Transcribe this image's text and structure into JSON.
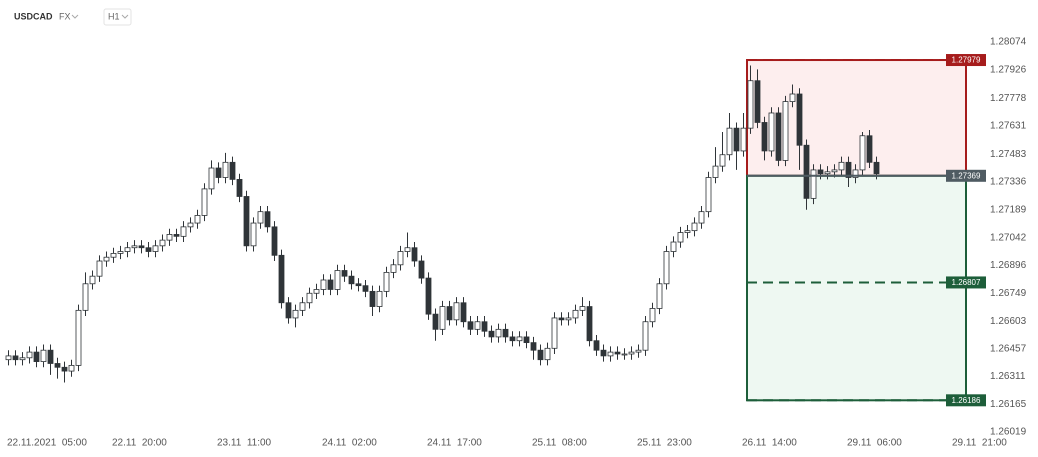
{
  "chart_data": {
    "type": "candlestick",
    "title": "USDCAD",
    "market": "FX",
    "timeframe": "H1",
    "open": [
      1.264,
      1.2642,
      1.264,
      1.2641,
      1.2644,
      1.2639,
      1.2645,
      1.2638,
      1.2636,
      1.2634,
      1.2637,
      1.2666,
      1.268,
      1.2684,
      1.2692,
      1.2694,
      1.2696,
      1.2697,
      1.2699,
      1.27,
      1.2699,
      1.2697,
      1.27,
      1.2703,
      1.2706,
      1.2705,
      1.271,
      1.2712,
      1.2716,
      1.273,
      1.2741,
      1.2736,
      1.2744,
      1.2735,
      1.2726,
      1.27,
      1.2712,
      1.2718,
      1.271,
      1.2695,
      1.267,
      1.2662,
      1.2666,
      1.267,
      1.2675,
      1.2677,
      1.2682,
      1.2677,
      1.2687,
      1.2684,
      1.268,
      1.2679,
      1.2676,
      1.2668,
      1.2676,
      1.2686,
      1.269,
      1.2697,
      1.2699,
      1.2692,
      1.2683,
      1.2664,
      1.2656,
      1.2668,
      1.2661,
      1.267,
      1.266,
      1.2656,
      1.266,
      1.2655,
      1.2652,
      1.2656,
      1.2652,
      1.265,
      1.2652,
      1.2649,
      1.2645,
      1.264,
      1.2646,
      1.2662,
      1.2661,
      1.2662,
      1.2666,
      1.2668,
      1.265,
      1.2645,
      1.2642,
      1.2644,
      1.2643,
      1.2643,
      1.2644,
      1.2645,
      1.266,
      1.2667,
      1.268,
      1.2697,
      1.2702,
      1.2707,
      1.2708,
      1.2712,
      1.2718,
      1.2736,
      1.2742,
      1.2748,
      1.2762,
      1.275,
      1.2762,
      1.2787,
      1.2765,
      1.275,
      1.277,
      1.2745,
      1.2776,
      1.278,
      1.2753,
      1.2725,
      1.274,
      1.2738,
      1.2739,
      1.274,
      1.2744,
      1.2736,
      1.274,
      1.2758,
      1.2744
    ],
    "high": [
      1.2645,
      1.2645,
      1.2644,
      1.2647,
      1.2647,
      1.2648,
      1.2648,
      1.2641,
      1.2639,
      1.264,
      1.2669,
      1.2686,
      1.2687,
      1.2695,
      1.2697,
      1.2699,
      1.27,
      1.2702,
      1.2703,
      1.2703,
      1.2702,
      1.2703,
      1.2706,
      1.2709,
      1.2709,
      1.2713,
      1.2715,
      1.2719,
      1.2733,
      1.2745,
      1.2744,
      1.2749,
      1.2747,
      1.2738,
      1.2729,
      1.2715,
      1.2721,
      1.2721,
      1.2713,
      1.2698,
      1.2673,
      1.2669,
      1.2673,
      1.2678,
      1.268,
      1.2685,
      1.2685,
      1.269,
      1.269,
      1.2687,
      1.2683,
      1.2682,
      1.2679,
      1.2679,
      1.2689,
      1.2693,
      1.27,
      1.2707,
      1.2702,
      1.2695,
      1.2686,
      1.2667,
      1.2671,
      1.2671,
      1.2673,
      1.2673,
      1.2663,
      1.2663,
      1.2663,
      1.2658,
      1.2659,
      1.2659,
      1.2655,
      1.2655,
      1.2655,
      1.2652,
      1.2648,
      1.2649,
      1.2665,
      1.2665,
      1.2665,
      1.2669,
      1.2673,
      1.2671,
      1.2653,
      1.2648,
      1.2647,
      1.2647,
      1.2646,
      1.2647,
      1.2648,
      1.2663,
      1.267,
      1.2683,
      1.27,
      1.2705,
      1.271,
      1.2711,
      1.2715,
      1.2721,
      1.2739,
      1.2752,
      1.276,
      1.277,
      1.2765,
      1.277,
      1.2795,
      1.2793,
      1.2768,
      1.2773,
      1.2773,
      1.2779,
      1.2785,
      1.2783,
      1.2756,
      1.2743,
      1.2743,
      1.2742,
      1.2743,
      1.2747,
      1.2747,
      1.2743,
      1.276,
      1.2761,
      1.2747
    ],
    "low": [
      1.2637,
      1.2637,
      1.2637,
      1.2638,
      1.2636,
      1.2636,
      1.2632,
      1.263,
      1.2628,
      1.2631,
      1.2634,
      1.2663,
      1.2677,
      1.2681,
      1.2689,
      1.2691,
      1.2693,
      1.2694,
      1.2696,
      1.2696,
      1.2694,
      1.2694,
      1.2697,
      1.27,
      1.2702,
      1.2702,
      1.2707,
      1.2709,
      1.2713,
      1.2727,
      1.2733,
      1.2733,
      1.2732,
      1.2723,
      1.2697,
      1.2697,
      1.2709,
      1.2707,
      1.2692,
      1.2667,
      1.2659,
      1.2657,
      1.2663,
      1.2667,
      1.2672,
      1.2674,
      1.2674,
      1.2674,
      1.2681,
      1.2677,
      1.2676,
      1.2673,
      1.2663,
      1.2665,
      1.2673,
      1.2683,
      1.2687,
      1.2694,
      1.2689,
      1.268,
      1.2661,
      1.265,
      1.2653,
      1.2658,
      1.2658,
      1.2657,
      1.2653,
      1.2653,
      1.2652,
      1.2649,
      1.2649,
      1.2649,
      1.2647,
      1.2647,
      1.2646,
      1.264,
      1.2637,
      1.2637,
      1.2643,
      1.2658,
      1.2658,
      1.2659,
      1.2663,
      1.2647,
      1.2642,
      1.2639,
      1.2639,
      1.264,
      1.264,
      1.264,
      1.2641,
      1.2642,
      1.2657,
      1.2664,
      1.2677,
      1.2694,
      1.2699,
      1.2704,
      1.2705,
      1.2709,
      1.2715,
      1.2733,
      1.2739,
      1.2745,
      1.274,
      1.2747,
      1.2759,
      1.2762,
      1.2745,
      1.2747,
      1.2742,
      1.2742,
      1.2773,
      1.274,
      1.2719,
      1.2722,
      1.2735,
      1.2735,
      1.2736,
      1.2737,
      1.2731,
      1.2733,
      1.2737,
      1.2741,
      1.2735
    ],
    "close": [
      1.2642,
      1.264,
      1.2641,
      1.2644,
      1.2639,
      1.2645,
      1.2638,
      1.2636,
      1.2634,
      1.2637,
      1.2666,
      1.268,
      1.2684,
      1.2692,
      1.2694,
      1.2696,
      1.2697,
      1.2699,
      1.27,
      1.2699,
      1.2697,
      1.27,
      1.2703,
      1.2706,
      1.2705,
      1.271,
      1.2712,
      1.2716,
      1.273,
      1.2741,
      1.2736,
      1.2744,
      1.2735,
      1.2726,
      1.27,
      1.2712,
      1.2718,
      1.271,
      1.2695,
      1.267,
      1.2662,
      1.2666,
      1.267,
      1.2675,
      1.2677,
      1.2682,
      1.2677,
      1.2687,
      1.2684,
      1.268,
      1.2679,
      1.2676,
      1.2668,
      1.2676,
      1.2686,
      1.269,
      1.2697,
      1.2699,
      1.2692,
      1.2683,
      1.2664,
      1.2656,
      1.2668,
      1.2661,
      1.267,
      1.266,
      1.2656,
      1.266,
      1.2655,
      1.2652,
      1.2656,
      1.2652,
      1.265,
      1.2652,
      1.2649,
      1.2645,
      1.264,
      1.2646,
      1.2662,
      1.2661,
      1.2662,
      1.2666,
      1.2668,
      1.265,
      1.2645,
      1.2642,
      1.2644,
      1.2643,
      1.2643,
      1.2644,
      1.2645,
      1.266,
      1.2667,
      1.268,
      1.2697,
      1.2702,
      1.2707,
      1.2708,
      1.2712,
      1.2718,
      1.2736,
      1.2742,
      1.2748,
      1.2762,
      1.275,
      1.2762,
      1.2787,
      1.2765,
      1.275,
      1.277,
      1.2745,
      1.2776,
      1.278,
      1.2753,
      1.2725,
      1.274,
      1.2738,
      1.2739,
      1.274,
      1.2744,
      1.2736,
      1.274,
      1.2758,
      1.2744,
      1.2738
    ],
    "up_color": "#ffffff",
    "down_color": "#2f3438",
    "edge_color": "#2f3438",
    "ylim": [
      1.26019,
      1.28074
    ],
    "yticks": [
      1.28074,
      1.27926,
      1.27778,
      1.27631,
      1.27483,
      1.27336,
      1.27189,
      1.27042,
      1.26896,
      1.26749,
      1.26603,
      1.26457,
      1.26311,
      1.26165,
      1.26019
    ],
    "xlim": [
      0,
      135
    ],
    "xticks": [
      {
        "value": 0,
        "label": "22.11.2021  05:00"
      },
      {
        "value": 15,
        "label": "22.11  20:00"
      },
      {
        "value": 30,
        "label": "23.11  11:00"
      },
      {
        "value": 45,
        "label": "24.11  02:00"
      },
      {
        "value": 60,
        "label": "24.11  17:00"
      },
      {
        "value": 75,
        "label": "25.11  08:00"
      },
      {
        "value": 90,
        "label": "25.11  23:00"
      },
      {
        "value": 105,
        "label": "26.11  14:00"
      },
      {
        "value": 120,
        "label": "29.11  06:00"
      },
      {
        "value": 135,
        "label": "29.11  21:00"
      }
    ],
    "position": {
      "stop": 1.27979,
      "entry": 1.27369,
      "target1": 1.26807,
      "target": 1.26186,
      "stop_color": "#a61c1c",
      "entry_color": "#4f5b62",
      "target_color": "#1d5e3a"
    }
  }
}
